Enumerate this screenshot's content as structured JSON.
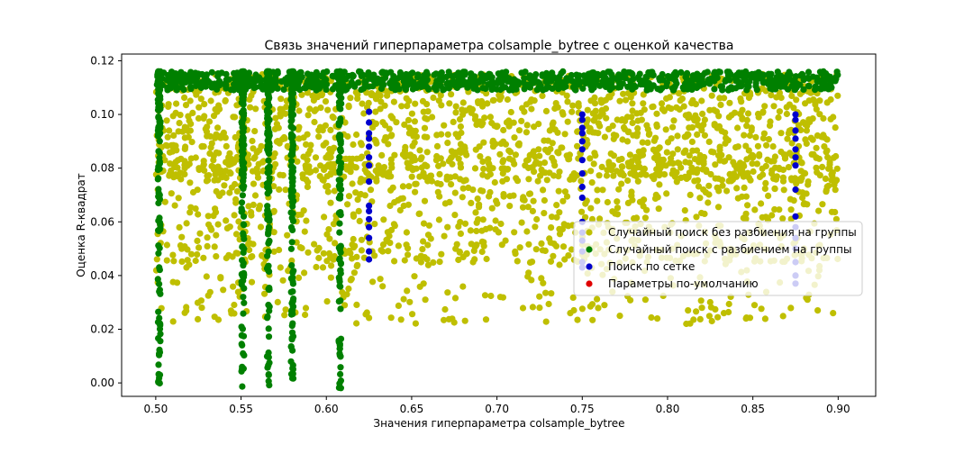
{
  "chart_data": {
    "type": "scatter",
    "title": "Связь значений гиперпараметра colsample_bytree с оценкой качества",
    "xlabel": "Значения гиперпараметра colsample_bytree",
    "ylabel": "Оценка R-квадрат",
    "xlim": [
      0.48,
      0.922
    ],
    "ylim": [
      -0.005,
      0.1225
    ],
    "x_ticks": [
      0.5,
      0.55,
      0.6,
      0.65,
      0.7,
      0.75,
      0.8,
      0.85,
      0.9
    ],
    "x_tick_labels": [
      "0.50",
      "0.55",
      "0.60",
      "0.65",
      "0.70",
      "0.75",
      "0.80",
      "0.85",
      "0.90"
    ],
    "y_ticks": [
      0.0,
      0.02,
      0.04,
      0.06,
      0.08,
      0.1,
      0.12
    ],
    "y_tick_labels": [
      "0.00",
      "0.02",
      "0.04",
      "0.06",
      "0.08",
      "0.10",
      "0.12"
    ],
    "grid": false,
    "legend_position": "center-right",
    "series": [
      {
        "name": "Случайный поиск без разбиения на группы",
        "color": "#bfbf00",
        "approximate": true,
        "description_of_distribution": "dense uniform cloud over x in [0.50, 0.90], y mostly 0.03–0.115, sparse down to 0.02",
        "points": [
          [
            0.505,
            0.112
          ],
          [
            0.512,
            0.104
          ],
          [
            0.518,
            0.095
          ],
          [
            0.522,
            0.071
          ],
          [
            0.527,
            0.088
          ],
          [
            0.531,
            0.059
          ],
          [
            0.536,
            0.101
          ],
          [
            0.541,
            0.079
          ],
          [
            0.545,
            0.047
          ],
          [
            0.549,
            0.093
          ],
          [
            0.556,
            0.107
          ],
          [
            0.561,
            0.066
          ],
          [
            0.568,
            0.084
          ],
          [
            0.573,
            0.102
          ],
          [
            0.577,
            0.055
          ],
          [
            0.584,
            0.091
          ],
          [
            0.589,
            0.073
          ],
          [
            0.594,
            0.108
          ],
          [
            0.598,
            0.043
          ],
          [
            0.603,
            0.086
          ],
          [
            0.611,
            0.097
          ],
          [
            0.616,
            0.062
          ],
          [
            0.621,
            0.104
          ],
          [
            0.629,
            0.079
          ],
          [
            0.633,
            0.049
          ],
          [
            0.638,
            0.092
          ],
          [
            0.642,
            0.068
          ],
          [
            0.647,
            0.106
          ],
          [
            0.652,
            0.083
          ],
          [
            0.657,
            0.037
          ],
          [
            0.662,
            0.099
          ],
          [
            0.667,
            0.074
          ],
          [
            0.671,
            0.058
          ],
          [
            0.676,
            0.103
          ],
          [
            0.681,
            0.088
          ],
          [
            0.686,
            0.045
          ],
          [
            0.691,
            0.096
          ],
          [
            0.696,
            0.071
          ],
          [
            0.701,
            0.109
          ],
          [
            0.705,
            0.053
          ],
          [
            0.711,
            0.085
          ],
          [
            0.716,
            0.101
          ],
          [
            0.721,
            0.064
          ],
          [
            0.726,
            0.039
          ],
          [
            0.731,
            0.094
          ],
          [
            0.736,
            0.077
          ],
          [
            0.741,
            0.107
          ],
          [
            0.746,
            0.056
          ],
          [
            0.753,
            0.089
          ],
          [
            0.758,
            0.099
          ],
          [
            0.763,
            0.048
          ],
          [
            0.768,
            0.081
          ],
          [
            0.772,
            0.105
          ],
          [
            0.777,
            0.067
          ],
          [
            0.782,
            0.092
          ],
          [
            0.787,
            0.031
          ],
          [
            0.792,
            0.076
          ],
          [
            0.797,
            0.102
          ],
          [
            0.802,
            0.059
          ],
          [
            0.806,
            0.087
          ],
          [
            0.811,
            0.022
          ],
          [
            0.816,
            0.098
          ],
          [
            0.821,
            0.072
          ],
          [
            0.826,
            0.107
          ],
          [
            0.831,
            0.051
          ],
          [
            0.836,
            0.084
          ],
          [
            0.841,
            0.095
          ],
          [
            0.846,
            0.063
          ],
          [
            0.851,
            0.029
          ],
          [
            0.856,
            0.101
          ],
          [
            0.861,
            0.078
          ],
          [
            0.866,
            0.054
          ],
          [
            0.871,
            0.093
          ],
          [
            0.879,
            0.069
          ],
          [
            0.884,
            0.108
          ],
          [
            0.889,
            0.042
          ],
          [
            0.893,
            0.086
          ],
          [
            0.897,
            0.099
          ],
          [
            0.899,
            0.061
          ],
          [
            0.812,
            0.027
          ],
          [
            0.794,
            0.024
          ],
          [
            0.763,
            0.029
          ],
          [
            0.743,
            0.026
          ],
          [
            0.833,
            0.026
          ],
          [
            0.888,
            0.027
          ],
          [
            0.897,
            0.026
          ],
          [
            0.527,
            0.028
          ],
          [
            0.551,
            0.035
          ],
          [
            0.612,
            0.033
          ],
          [
            0.658,
            0.031
          ],
          [
            0.702,
            0.032
          ],
          [
            0.725,
            0.028
          ],
          [
            0.772,
            0.025
          ],
          [
            0.826,
            0.023
          ],
          [
            0.846,
            0.024
          ],
          [
            0.882,
            0.031
          ],
          [
            0.518,
            0.043
          ],
          [
            0.538,
            0.039
          ],
          [
            0.587,
            0.041
          ],
          [
            0.633,
            0.036
          ]
        ]
      },
      {
        "name": "Случайный поиск с разбиением на группы",
        "color": "#008000",
        "approximate": true,
        "description_of_distribution": "dense band at y≈0.110–0.116 across x in [0.50, 0.90]; vertical streaks at x≈0.502, 0.551, 0.566, 0.580, 0.608",
        "band": {
          "x_min": 0.5,
          "x_max": 0.9,
          "y_min": 0.109,
          "y_max": 0.116
        },
        "columns": [
          {
            "x": 0.502,
            "y_min": -0.002,
            "y_max": 0.116
          },
          {
            "x": 0.551,
            "y_min": -0.002,
            "y_max": 0.116
          },
          {
            "x": 0.566,
            "y_min": -0.002,
            "y_max": 0.116
          },
          {
            "x": 0.58,
            "y_min": -0.002,
            "y_max": 0.116
          },
          {
            "x": 0.608,
            "y_min": -0.002,
            "y_max": 0.116
          }
        ]
      },
      {
        "name": "Поиск по сетке",
        "color": "#0000cc",
        "approximate": true,
        "points": [
          [
            0.625,
            0.101
          ],
          [
            0.625,
            0.097
          ],
          [
            0.625,
            0.093
          ],
          [
            0.625,
            0.091
          ],
          [
            0.625,
            0.088
          ],
          [
            0.625,
            0.084
          ],
          [
            0.625,
            0.081
          ],
          [
            0.625,
            0.075
          ],
          [
            0.625,
            0.066
          ],
          [
            0.625,
            0.064
          ],
          [
            0.625,
            0.061
          ],
          [
            0.625,
            0.058
          ],
          [
            0.625,
            0.054
          ],
          [
            0.625,
            0.049
          ],
          [
            0.625,
            0.046
          ],
          [
            0.75,
            0.1
          ],
          [
            0.75,
            0.098
          ],
          [
            0.75,
            0.095
          ],
          [
            0.75,
            0.093
          ],
          [
            0.75,
            0.09
          ],
          [
            0.75,
            0.087
          ],
          [
            0.75,
            0.083
          ],
          [
            0.75,
            0.078
          ],
          [
            0.75,
            0.073
          ],
          [
            0.75,
            0.069
          ],
          [
            0.75,
            0.06
          ],
          [
            0.75,
            0.056
          ],
          [
            0.75,
            0.053
          ],
          [
            0.75,
            0.049
          ],
          [
            0.75,
            0.045
          ],
          [
            0.75,
            0.043
          ],
          [
            0.875,
            0.1
          ],
          [
            0.875,
            0.098
          ],
          [
            0.875,
            0.094
          ],
          [
            0.875,
            0.091
          ],
          [
            0.875,
            0.087
          ],
          [
            0.875,
            0.084
          ],
          [
            0.875,
            0.081
          ],
          [
            0.875,
            0.072
          ],
          [
            0.875,
            0.062
          ],
          [
            0.875,
            0.058
          ],
          [
            0.875,
            0.054
          ],
          [
            0.875,
            0.05
          ],
          [
            0.875,
            0.045
          ],
          [
            0.875,
            0.04
          ],
          [
            0.875,
            0.037
          ]
        ]
      },
      {
        "name": "Параметры по-умолчанию",
        "color": "#e00000",
        "points": []
      }
    ]
  }
}
